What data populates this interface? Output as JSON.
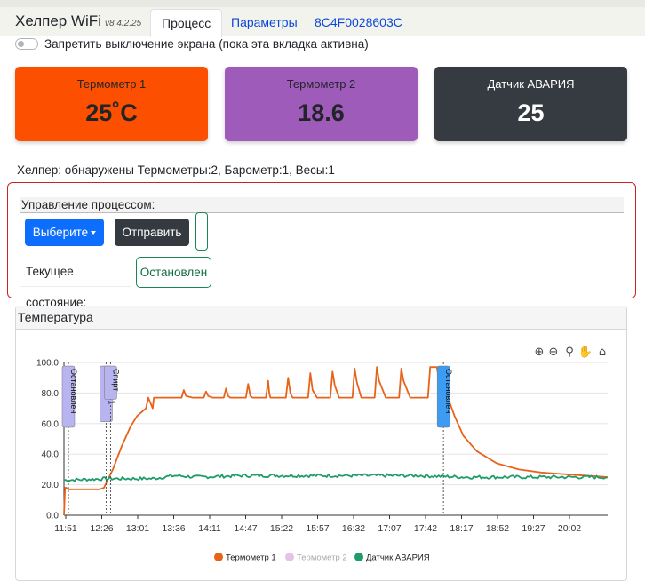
{
  "app": {
    "title": "Хелпер WiFi",
    "version": "v8.4.2.25"
  },
  "tabs": [
    {
      "label": "Процесс",
      "active": true
    },
    {
      "label": "Параметры",
      "active": false
    },
    {
      "label": "8C4F0028603C",
      "active": false
    }
  ],
  "screen_toggle": {
    "label": "Запретить выключение экрана (пока эта вкладка активна)",
    "checked": false
  },
  "cards": [
    {
      "title": "Термометр 1",
      "value": "25˚C",
      "color": "#fd4f00"
    },
    {
      "title": "Термометр 2",
      "value": "18.6",
      "color": "#9e5bb9"
    },
    {
      "title": "Датчик АВАРИЯ",
      "value": "25",
      "color": "#363b41"
    }
  ],
  "info_line": "Хелпер: обнаружены Термометры:2, Барометр:1, Весы:1",
  "process": {
    "header": "Управление процессом:",
    "select_label": "Выберите",
    "send_label": "Отправить",
    "state_label": "Текущее состояние:",
    "state_value": "Остановлен"
  },
  "chart_card": {
    "title": "Температура"
  },
  "chart_data": {
    "type": "line",
    "x_ticks": [
      "11:51",
      "12:26",
      "13:01",
      "13:36",
      "14:11",
      "14:47",
      "15:22",
      "15:57",
      "16:32",
      "17:07",
      "17:42",
      "18:17",
      "18:52",
      "19:27",
      "20:02"
    ],
    "ylim": [
      0,
      100
    ],
    "y_ticks": [
      "0.0",
      "20.0",
      "40.0",
      "60.0",
      "80.0",
      "100.0"
    ],
    "grid": true,
    "legend_position": "bottom",
    "series": [
      {
        "name": "Термометр 1",
        "color": "#e8631a",
        "x": [
          0,
          0.5,
          1,
          2,
          10,
          16,
          18,
          22,
          26,
          30,
          33,
          37,
          38,
          40,
          40.5,
          41,
          44,
          50,
          53,
          54,
          55,
          58,
          63,
          64,
          65,
          67,
          72,
          73,
          74,
          75,
          77,
          82,
          83,
          84,
          85,
          87,
          91,
          92,
          92.5,
          93,
          95,
          100,
          101,
          102,
          103,
          105,
          110,
          111,
          112,
          114,
          116,
          120,
          121,
          122,
          124,
          126,
          130,
          131,
          132,
          134,
          136,
          140,
          141,
          142,
          145,
          147,
          151,
          152,
          153,
          156,
          158,
          164,
          165,
          166,
          167,
          168,
          169,
          171,
          176,
          180,
          186,
          195,
          205,
          215,
          225,
          235,
          245
        ],
        "y": [
          0,
          18,
          18,
          17,
          17,
          17,
          18,
          30,
          45,
          58,
          65,
          70,
          77,
          70,
          77,
          77,
          77,
          77,
          77,
          82,
          78,
          77,
          77,
          81,
          78,
          77,
          77,
          83,
          78,
          77,
          77,
          77,
          86,
          78,
          77,
          77,
          77,
          88,
          80,
          77,
          77,
          77,
          90,
          80,
          77,
          77,
          77,
          93,
          82,
          77,
          77,
          77,
          94,
          85,
          77,
          77,
          77,
          96,
          87,
          77,
          77,
          77,
          97,
          88,
          77,
          77,
          77,
          96,
          88,
          77,
          77,
          77,
          97,
          97,
          97,
          97,
          88,
          85,
          65,
          52,
          42,
          34,
          30,
          28,
          27,
          26,
          25
        ]
      },
      {
        "name": "Термометр 2",
        "color": "#e6c3e6",
        "hidden": true,
        "x": [],
        "y": []
      },
      {
        "name": "Датчик АВАРИЯ",
        "color": "#1e9c6a",
        "x": [
          0,
          20,
          40,
          50,
          60,
          80,
          100,
          120,
          140,
          160,
          180,
          200,
          220,
          245
        ],
        "y": [
          23,
          24,
          24,
          26,
          25,
          26,
          26,
          26,
          26,
          26,
          25,
          25,
          25,
          25
        ]
      }
    ],
    "annotations": [
      {
        "label": "Остановлен",
        "at": 2
      },
      {
        "label": "Авто Зл 1",
        "at": 19
      },
      {
        "label": "Спирт",
        "at": 21
      },
      {
        "label": "Остановлен",
        "at": 171
      }
    ]
  }
}
